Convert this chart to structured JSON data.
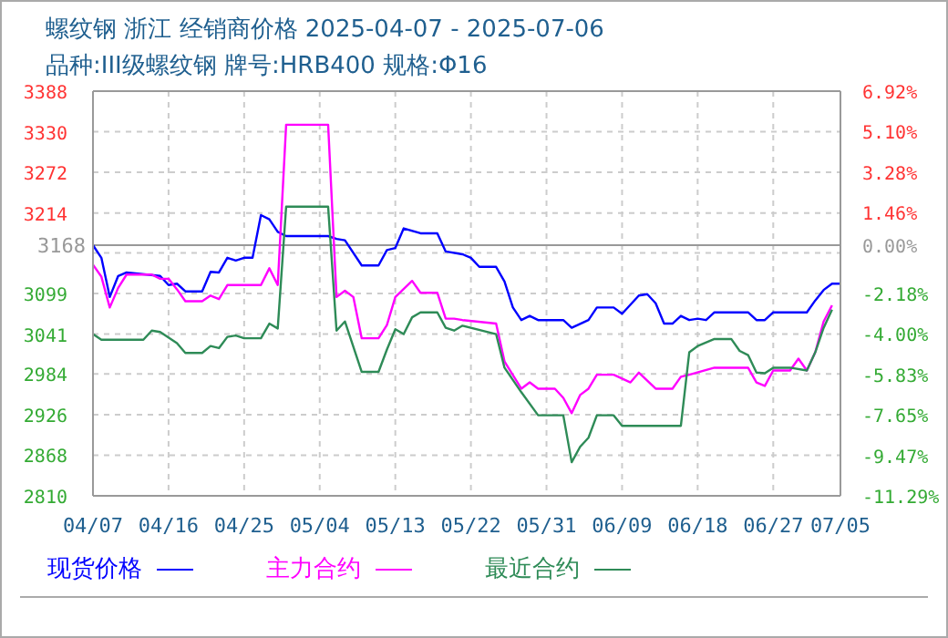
{
  "chart_data": {
    "type": "line",
    "title": "螺纹钢 浙江 经销商价格 2025-04-07 - 2025-07-06",
    "subtitle": "品种:III级螺纹钢 牌号:HRB400 规格:Φ16",
    "xlim": [
      "2025-04-07",
      "2025-07-05"
    ],
    "xticks": [
      {
        "value": "2025-04-07",
        "label": "04/07"
      },
      {
        "value": "2025-04-16",
        "label": "04/16"
      },
      {
        "value": "2025-04-25",
        "label": "04/25"
      },
      {
        "value": "2025-05-04",
        "label": "05/04"
      },
      {
        "value": "2025-05-13",
        "label": "05/13"
      },
      {
        "value": "2025-05-22",
        "label": "05/22"
      },
      {
        "value": "2025-05-31",
        "label": "05/31"
      },
      {
        "value": "2025-06-09",
        "label": "06/09"
      },
      {
        "value": "2025-06-18",
        "label": "06/18"
      },
      {
        "value": "2025-06-27",
        "label": "06/27"
      },
      {
        "value": "2025-07-05",
        "label": "07/05"
      }
    ],
    "ylim": [
      2810,
      3388
    ],
    "yticks": [
      2810,
      2868,
      2926,
      2984,
      3041,
      3099,
      {
        "value": 3157,
        "label": null
      },
      3214,
      3272,
      3330,
      3388
    ],
    "y2lim": [
      -11.29,
      6.92
    ],
    "y2ticks": [
      {
        "value": 6.92,
        "label": "6.92%"
      },
      {
        "value": 5.1,
        "label": "5.10%"
      },
      {
        "value": 3.28,
        "label": "3.28%"
      },
      {
        "value": 1.46,
        "label": "1.46%"
      },
      {
        "value": 0,
        "label": "0.00%"
      },
      {
        "value": -2.18,
        "label": "-2.18%"
      },
      {
        "value": -4,
        "label": "-4.00%"
      },
      {
        "value": -5.83,
        "label": "-5.83%"
      },
      {
        "value": -7.65,
        "label": "-7.65%"
      },
      {
        "value": -9.47,
        "label": "-9.47%"
      },
      {
        "value": -11.29,
        "label": "-11.29%"
      }
    ],
    "ref_lines": [
      {
        "axis": "y",
        "value": 3168,
        "label": "3168",
        "color": "#999999"
      }
    ],
    "grid": true,
    "legend": "bottom",
    "marker": "none",
    "line_style": "solid",
    "series": [
      {
        "name": "现货价格",
        "color": "#0000ff",
        "x": [
          "2025-04-07",
          "2025-04-08",
          "2025-04-09",
          "2025-04-10",
          "2025-04-11",
          "2025-04-15",
          "2025-04-16",
          "2025-04-17",
          "2025-04-18",
          "2025-04-20",
          "2025-04-21",
          "2025-04-22",
          "2025-04-23",
          "2025-04-24",
          "2025-04-25",
          "2025-04-26",
          "2025-04-27",
          "2025-04-28",
          "2025-04-29",
          "2025-04-30",
          "2025-05-05",
          "2025-05-06",
          "2025-05-07",
          "2025-05-09",
          "2025-05-11",
          "2025-05-12",
          "2025-05-13",
          "2025-05-14",
          "2025-05-16",
          "2025-05-18",
          "2025-05-19",
          "2025-05-21",
          "2025-05-22",
          "2025-05-23",
          "2025-05-25",
          "2025-05-26",
          "2025-05-27",
          "2025-05-28",
          "2025-05-29",
          "2025-05-30",
          "2025-06-02",
          "2025-06-03",
          "2025-06-05",
          "2025-06-06",
          "2025-06-08",
          "2025-06-09",
          "2025-06-11",
          "2025-06-12",
          "2025-06-13",
          "2025-06-14",
          "2025-06-15",
          "2025-06-16",
          "2025-06-17",
          "2025-06-18",
          "2025-06-19",
          "2025-06-20",
          "2025-06-24",
          "2025-06-25",
          "2025-06-26",
          "2025-06-27",
          "2025-07-01",
          "2025-07-02",
          "2025-07-03",
          "2025-07-04",
          "2025-07-05"
        ],
        "values": [
          3168,
          3150,
          3094,
          3124,
          3129,
          3124,
          3111,
          3113,
          3102,
          3102,
          3130,
          3129,
          3150,
          3146,
          3150,
          3150,
          3211,
          3205,
          3187,
          3181,
          3181,
          3177,
          3175,
          3139,
          3139,
          3161,
          3164,
          3192,
          3185,
          3185,
          3159,
          3155,
          3150,
          3137,
          3137,
          3116,
          3079,
          3061,
          3067,
          3061,
          3061,
          3050,
          3061,
          3079,
          3079,
          3070,
          3096,
          3098,
          3085,
          3056,
          3056,
          3067,
          3061,
          3063,
          3061,
          3072,
          3072,
          3061,
          3061,
          3072,
          3072,
          3089,
          3104,
          3113,
          3113
        ]
      },
      {
        "name": "主力合约",
        "color": "#ff00ff",
        "x": [
          "2025-04-07",
          "2025-04-08",
          "2025-04-09",
          "2025-04-10",
          "2025-04-11",
          "2025-04-14",
          "2025-04-15",
          "2025-04-16",
          "2025-04-17",
          "2025-04-18",
          "2025-04-20",
          "2025-04-21",
          "2025-04-22",
          "2025-04-23",
          "2025-04-27",
          "2025-04-28",
          "2025-04-29",
          "2025-04-30",
          "2025-05-05",
          "2025-05-06",
          "2025-05-07",
          "2025-05-08",
          "2025-05-09",
          "2025-05-11",
          "2025-05-12",
          "2025-05-13",
          "2025-05-15",
          "2025-05-16",
          "2025-05-18",
          "2025-05-19",
          "2025-05-20",
          "2025-05-21",
          "2025-05-25",
          "2025-05-26",
          "2025-05-28",
          "2025-05-29",
          "2025-05-30",
          "2025-06-01",
          "2025-06-02",
          "2025-06-03",
          "2025-06-04",
          "2025-06-05",
          "2025-06-06",
          "2025-06-08",
          "2025-06-10",
          "2025-06-11",
          "2025-06-13",
          "2025-06-15",
          "2025-06-16",
          "2025-06-17",
          "2025-06-20",
          "2025-06-24",
          "2025-06-25",
          "2025-06-26",
          "2025-06-27",
          "2025-06-29",
          "2025-06-30",
          "2025-07-01",
          "2025-07-02",
          "2025-07-03",
          "2025-07-04"
        ],
        "values": [
          3140,
          3123,
          3079,
          3107,
          3126,
          3126,
          3120,
          3120,
          3105,
          3088,
          3088,
          3096,
          3091,
          3111,
          3111,
          3135,
          3111,
          3340,
          3340,
          3094,
          3103,
          3094,
          3035,
          3035,
          3054,
          3094,
          3117,
          3100,
          3100,
          3063,
          3063,
          3061,
          3056,
          3002,
          2963,
          2972,
          2963,
          2963,
          2950,
          2928,
          2954,
          2963,
          2983,
          2983,
          2972,
          2986,
          2963,
          2963,
          2980,
          2983,
          2993,
          2993,
          2972,
          2967,
          2989,
          2989,
          3006,
          2989,
          3015,
          3059,
          3082
        ]
      },
      {
        "name": "最近合约",
        "color": "#2e8b57",
        "x": [
          "2025-04-07",
          "2025-04-08",
          "2025-04-13",
          "2025-04-14",
          "2025-04-15",
          "2025-04-17",
          "2025-04-18",
          "2025-04-20",
          "2025-04-21",
          "2025-04-22",
          "2025-04-23",
          "2025-04-24",
          "2025-04-25",
          "2025-04-27",
          "2025-04-28",
          "2025-04-29",
          "2025-04-30",
          "2025-05-05",
          "2025-05-06",
          "2025-05-07",
          "2025-05-09",
          "2025-05-11",
          "2025-05-12",
          "2025-05-13",
          "2025-05-14",
          "2025-05-15",
          "2025-05-16",
          "2025-05-18",
          "2025-05-19",
          "2025-05-20",
          "2025-05-21",
          "2025-05-25",
          "2025-05-26",
          "2025-05-28",
          "2025-05-30",
          "2025-06-02",
          "2025-06-03",
          "2025-06-04",
          "2025-06-05",
          "2025-06-06",
          "2025-06-08",
          "2025-06-09",
          "2025-06-16",
          "2025-06-17",
          "2025-06-18",
          "2025-06-20",
          "2025-06-22",
          "2025-06-23",
          "2025-06-24",
          "2025-06-25",
          "2025-06-26",
          "2025-06-27",
          "2025-06-29",
          "2025-07-01",
          "2025-07-02",
          "2025-07-03",
          "2025-07-04"
        ],
        "values": [
          3041,
          3033,
          3033,
          3046,
          3044,
          3028,
          3014,
          3014,
          3024,
          3021,
          3037,
          3039,
          3035,
          3035,
          3056,
          3049,
          3223,
          3223,
          3046,
          3059,
          2987,
          2987,
          3019,
          3048,
          3041,
          3065,
          3072,
          3072,
          3050,
          3046,
          3053,
          3041,
          2993,
          2958,
          2925,
          2925,
          2858,
          2880,
          2893,
          2925,
          2925,
          2910,
          2910,
          3015,
          3024,
          3034,
          3034,
          3017,
          3011,
          2986,
          2985,
          2993,
          2993,
          2989,
          3015,
          3050,
          3076
        ]
      }
    ]
  }
}
